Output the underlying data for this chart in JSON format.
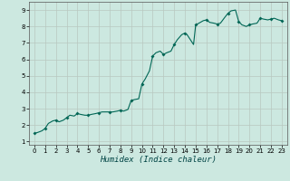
{
  "xlabel": "Humidex (Indice chaleur)",
  "xlim": [
    -0.5,
    23.5
  ],
  "ylim": [
    0.8,
    9.5
  ],
  "xticks": [
    0,
    1,
    2,
    3,
    4,
    5,
    6,
    7,
    8,
    9,
    10,
    11,
    12,
    13,
    14,
    15,
    16,
    17,
    18,
    19,
    20,
    21,
    22,
    23
  ],
  "yticks": [
    1,
    2,
    3,
    4,
    5,
    6,
    7,
    8,
    9
  ],
  "background_color": "#cce8e0",
  "grid_color": "#b8c8c0",
  "line_color": "#006655",
  "marker_color": "#006655",
  "x": [
    0,
    0.3,
    0.7,
    1.0,
    1.3,
    1.7,
    2.0,
    2.3,
    2.5,
    2.7,
    3.0,
    3.3,
    3.7,
    4.0,
    4.3,
    4.7,
    5.0,
    5.3,
    5.7,
    6.0,
    6.3,
    6.7,
    7.0,
    7.3,
    7.7,
    8.0,
    8.3,
    8.7,
    9.0,
    9.3,
    9.7,
    10.0,
    10.3,
    10.7,
    11.0,
    11.3,
    11.7,
    12.0,
    12.3,
    12.7,
    13.0,
    13.3,
    13.7,
    14.0,
    14.2,
    14.4,
    14.6,
    14.8,
    15.0,
    15.3,
    15.7,
    16.0,
    16.3,
    16.7,
    17.0,
    17.3,
    17.7,
    18.0,
    18.3,
    18.7,
    19.0,
    19.3,
    19.7,
    20.0,
    20.3,
    20.7,
    21.0,
    21.3,
    21.7,
    22.0,
    22.3,
    22.7,
    23.0
  ],
  "y": [
    1.5,
    1.55,
    1.65,
    1.8,
    2.1,
    2.25,
    2.3,
    2.2,
    2.25,
    2.3,
    2.45,
    2.6,
    2.55,
    2.7,
    2.65,
    2.6,
    2.6,
    2.65,
    2.7,
    2.75,
    2.8,
    2.8,
    2.8,
    2.8,
    2.85,
    2.9,
    2.85,
    2.95,
    3.5,
    3.55,
    3.6,
    4.5,
    4.8,
    5.3,
    6.2,
    6.4,
    6.5,
    6.3,
    6.4,
    6.5,
    6.9,
    7.2,
    7.5,
    7.6,
    7.5,
    7.3,
    7.1,
    6.9,
    8.1,
    8.2,
    8.35,
    8.4,
    8.25,
    8.2,
    8.15,
    8.2,
    8.55,
    8.8,
    8.95,
    9.0,
    8.3,
    8.1,
    8.0,
    8.1,
    8.15,
    8.2,
    8.5,
    8.45,
    8.4,
    8.45,
    8.5,
    8.4,
    8.35
  ],
  "marker_x": [
    0,
    1,
    2,
    3,
    4,
    5,
    6,
    7,
    8,
    9,
    10,
    11,
    12,
    13,
    14,
    15,
    16,
    17,
    18,
    19,
    20,
    21,
    22,
    23
  ],
  "marker_y": [
    1.5,
    1.8,
    2.3,
    2.45,
    2.7,
    2.6,
    2.75,
    2.8,
    2.9,
    3.5,
    4.5,
    6.2,
    6.3,
    6.9,
    7.6,
    8.1,
    8.4,
    8.15,
    8.8,
    8.3,
    8.1,
    8.5,
    8.45,
    8.35
  ]
}
